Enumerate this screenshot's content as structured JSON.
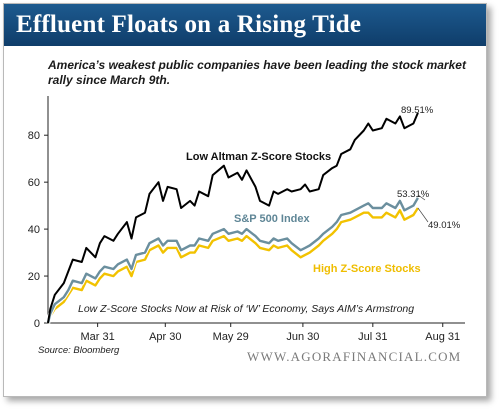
{
  "banner": {
    "title": "Effluent Floats on a Rising Tide"
  },
  "subtitle": "America’s weakest public companies have been leading the stock market rally since March 9th.",
  "source": "Source: Bloomberg",
  "footer": "WWW.AGORAFINANCIAL.COM",
  "colors": {
    "banner": "#14497c",
    "low_z": "#000000",
    "sp500": "#6b8f9e",
    "high_z": "#f2c200"
  },
  "chart_data": {
    "type": "line",
    "title": "",
    "xlabel": "",
    "ylabel": "",
    "ylim": [
      0,
      95
    ],
    "yticks": [
      0,
      20,
      40,
      60,
      80
    ],
    "xticks": [
      "Mar 31",
      "Apr 30",
      "May 29",
      "Jun 30",
      "Jul 31",
      "Aug 31"
    ],
    "x": [
      "Mar 09",
      "Mar 10",
      "Mar 12",
      "Mar 16",
      "Mar 18",
      "Mar 20",
      "Mar 24",
      "Mar 26",
      "Mar 30",
      "Apr 01",
      "Apr 03",
      "Apr 07",
      "Apr 09",
      "Apr 13",
      "Apr 15",
      "Apr 17",
      "Apr 21",
      "Apr 23",
      "Apr 27",
      "Apr 29",
      "May 01",
      "May 05",
      "May 07",
      "May 11",
      "May 13",
      "May 15",
      "May 19",
      "May 21",
      "May 26",
      "May 28",
      "Jun 01",
      "Jun 03",
      "Jun 05",
      "Jun 09",
      "Jun 11",
      "Jun 15",
      "Jun 17",
      "Jun 19",
      "Jun 23",
      "Jun 25",
      "Jun 29",
      "Jul 01",
      "Jul 03",
      "Jul 07",
      "Jul 09",
      "Jul 13",
      "Jul 15",
      "Jul 17",
      "Jul 21",
      "Jul 23",
      "Jul 27",
      "Jul 29",
      "Jul 31",
      "Aug 04",
      "Aug 06",
      "Aug 10",
      "Aug 12",
      "Aug 14",
      "Aug 18",
      "Aug 20"
    ],
    "series": [
      {
        "name": "Low Altman Z-Score Stocks",
        "end_label": "89.51%",
        "values": [
          0,
          6,
          12,
          17,
          22,
          27,
          26,
          32,
          28,
          34,
          37,
          35,
          38,
          43,
          36,
          45,
          47,
          55,
          60,
          52,
          58,
          57,
          49,
          52,
          50,
          56,
          54,
          63,
          67,
          62,
          64,
          61,
          65,
          58,
          52,
          50,
          56,
          55,
          57,
          56,
          57,
          59,
          56,
          57,
          63,
          66,
          67,
          72,
          74,
          78,
          82,
          85,
          82,
          83,
          87,
          85,
          88,
          83,
          85,
          89.51
        ]
      },
      {
        "name": "S&P 500 Index",
        "end_label": "53.31%",
        "values": [
          0,
          4,
          8,
          11,
          14,
          18,
          17,
          21,
          19,
          22,
          24,
          23,
          25,
          27,
          23,
          29,
          30,
          34,
          36,
          33,
          35,
          35,
          31,
          33,
          33,
          36,
          35,
          38,
          40,
          38,
          39,
          38,
          40,
          37,
          35,
          34,
          36,
          35,
          36,
          34,
          31,
          32,
          33,
          36,
          38,
          41,
          43,
          46,
          47,
          48,
          50,
          51,
          49,
          49,
          51,
          49,
          52,
          48,
          50,
          53.31
        ]
      },
      {
        "name": "High Z-Score Stocks",
        "end_label": "49.01%",
        "values": [
          0,
          3,
          6,
          9,
          12,
          15,
          14,
          18,
          16,
          19,
          21,
          20,
          22,
          24,
          20,
          26,
          27,
          31,
          33,
          30,
          32,
          32,
          28,
          30,
          30,
          33,
          32,
          35,
          37,
          35,
          36,
          35,
          37,
          34,
          32,
          31,
          33,
          32,
          33,
          31,
          28,
          29,
          30,
          33,
          35,
          38,
          40,
          43,
          44,
          45,
          47,
          47,
          45,
          45,
          47,
          45,
          48,
          44,
          46,
          49.01
        ]
      }
    ],
    "annotation": "Low Z-Score Stocks Now at Risk of ‘W’ Economy, Says AIM’s Armstrong",
    "grid": false,
    "legend": "inline labels"
  }
}
